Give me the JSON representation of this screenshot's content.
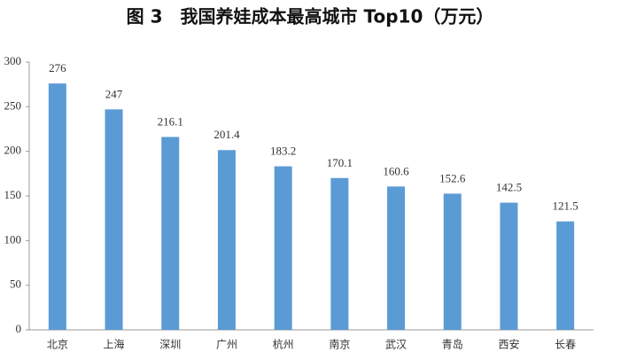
{
  "chart_data": {
    "type": "bar",
    "title": "图 3　我国养娃成本最高城市 Top10（万元）",
    "categories": [
      "北京",
      "上海",
      "深圳",
      "广州",
      "杭州",
      "南京",
      "武汉",
      "青岛",
      "西安",
      "长春"
    ],
    "values": [
      276,
      247,
      216.1,
      201.4,
      183.2,
      170.1,
      160.6,
      152.6,
      142.5,
      121.5
    ],
    "color": "#5b9bd5",
    "ylim": [
      0,
      300
    ],
    "yticks": [
      0,
      50,
      100,
      150,
      200,
      250,
      300
    ],
    "grid": false
  }
}
